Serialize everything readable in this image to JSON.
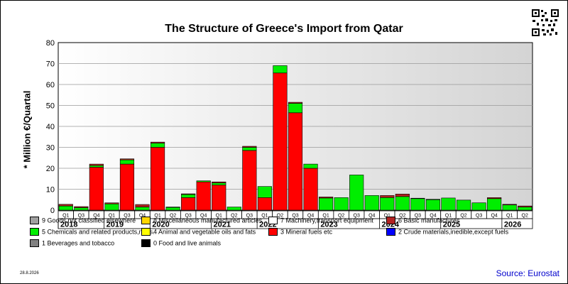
{
  "title": "The Structure of Greece's Import from Qatar",
  "source": "Source: Eurostat",
  "date_stamp": "28.8.2026",
  "colors": {
    "mineral_fuels": "#ff0000",
    "chemicals": "#00ee00",
    "basic_manufactures": "#b22222",
    "goods_nec": "#a0a0a0",
    "misc_manufactured": "#ffd700",
    "machinery": "#ffffff",
    "animal_veg_oils": "#ffff00",
    "crude_materials": "#0000ff",
    "beverages_tobacco": "#808080",
    "food_live_animals": "#000000"
  },
  "legend": [
    {
      "key": "goods_nec",
      "label": "9 Goods not classified elsewhere"
    },
    {
      "key": "misc_manufactured",
      "label": "8 Miscellaneous manufactured articles"
    },
    {
      "key": "machinery",
      "label": "7 Machinery,transport equipment"
    },
    {
      "key": "basic_manufactures",
      "label": "6 Basic manufactures"
    },
    {
      "key": "chemicals",
      "label": "5 Chemicals and related products,n.e.s."
    },
    {
      "key": "animal_veg_oils",
      "label": "4 Animal and vegetable oils and fats"
    },
    {
      "key": "mineral_fuels",
      "label": "3 Mineral fuels etc"
    },
    {
      "key": "crude_materials",
      "label": "2 Crude materials,inedible,except fuels"
    },
    {
      "key": "beverages_tobacco",
      "label": "1 Beverages and tobacco"
    },
    {
      "key": "food_live_animals",
      "label": "0 Food and live animals"
    }
  ],
  "chart_data": {
    "type": "bar",
    "stacked": true,
    "title": "The Structure of Greece's Import from Qatar",
    "ylabel": "* Million €/Quartal",
    "xlabel": "",
    "ylim": [
      0,
      80
    ],
    "yticks": [
      0,
      10,
      20,
      30,
      40,
      50,
      60,
      70,
      80
    ],
    "grid": true,
    "categories": [
      "Q1",
      "Q3",
      "Q4",
      "Q1",
      "Q3",
      "Q4",
      "Q1",
      "Q2",
      "Q3",
      "Q4",
      "Q1",
      "Q2",
      "Q3",
      "Q1",
      "Q2",
      "Q3",
      "Q4",
      "Q1",
      "Q2",
      "Q3",
      "Q4",
      "Q1",
      "Q2",
      "Q3",
      "Q4",
      "Q1",
      "Q2",
      "Q3",
      "Q4",
      "Q1",
      "Q2"
    ],
    "years": [
      {
        "label": "2018",
        "quarters": 3
      },
      {
        "label": "2019",
        "quarters": 3
      },
      {
        "label": "2020",
        "quarters": 4
      },
      {
        "label": "2021",
        "quarters": 3
      },
      {
        "label": "2022",
        "quarters": 4
      },
      {
        "label": "2023",
        "quarters": 4
      },
      {
        "label": "2024",
        "quarters": 4
      },
      {
        "label": "2025",
        "quarters": 4
      },
      {
        "label": "2026",
        "quarters": 2
      }
    ],
    "series": [
      {
        "name": "3 Mineral fuels etc",
        "color_key": "mineral_fuels",
        "values": [
          0,
          0,
          20.5,
          0,
          22,
          0,
          30,
          0,
          6,
          13.5,
          12,
          0,
          28.5,
          6,
          65.5,
          46.5,
          20,
          0,
          0,
          0,
          0,
          0,
          0,
          0,
          0,
          0,
          0,
          0,
          0,
          0,
          0
        ]
      },
      {
        "name": "5 Chemicals and related products,n.e.s.",
        "color_key": "chemicals",
        "values": [
          2,
          1.2,
          0.8,
          3,
          2,
          1.5,
          2,
          1.3,
          1.5,
          0.5,
          1,
          1.5,
          1.5,
          5.3,
          3.5,
          4.5,
          2,
          5.8,
          6,
          16.8,
          7,
          6,
          6.5,
          5.5,
          5,
          5.8,
          4.8,
          3.5,
          5.5,
          2.5,
          1.5
        ]
      },
      {
        "name": "6 Basic manufactures",
        "color_key": "basic_manufactures",
        "values": [
          0.8,
          0.5,
          0.7,
          0.5,
          0.5,
          1.2,
          0.5,
          0.2,
          0.3,
          0,
          0.5,
          0,
          0.5,
          0,
          0,
          0.5,
          0,
          0.5,
          0,
          0,
          0,
          1,
          1.2,
          0.2,
          0.2,
          0,
          0,
          0,
          0.5,
          0.3,
          0.5
        ]
      }
    ]
  }
}
